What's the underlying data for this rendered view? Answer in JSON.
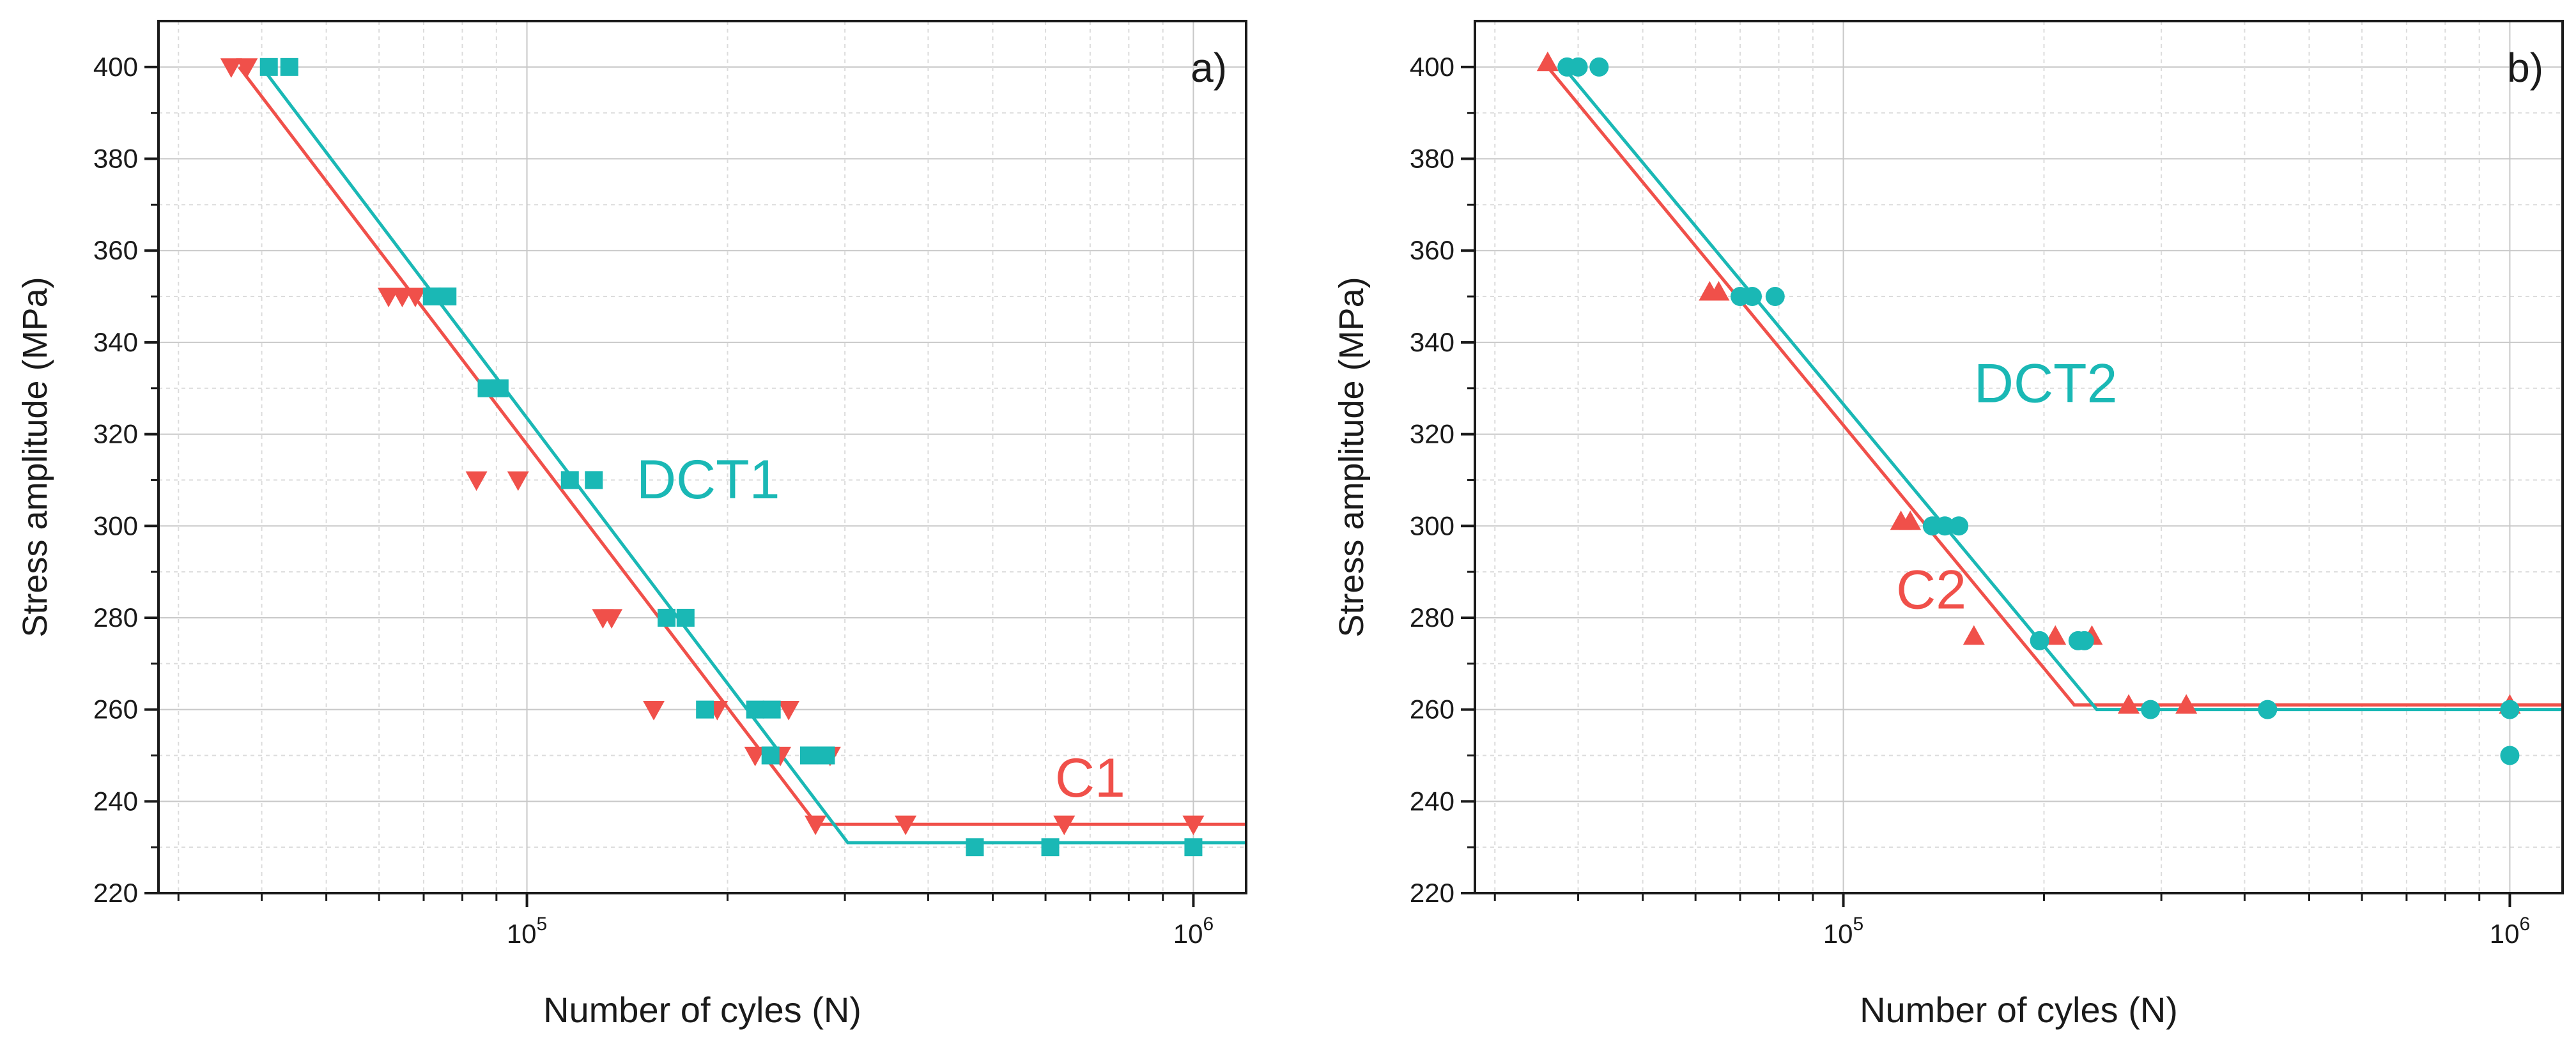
{
  "figure": {
    "background": "#ffffff"
  },
  "chart_data": [
    {
      "type": "scatter",
      "id": "a",
      "panel_label": "a)",
      "xlabel": "Number of cyles (N)",
      "ylabel": "Stress amplitude (MPa)",
      "x_scale": "log",
      "xlim": [
        28000,
        1200000
      ],
      "ylim": [
        220,
        410
      ],
      "y_ticks": [
        220,
        240,
        260,
        280,
        300,
        320,
        340,
        360,
        380,
        400
      ],
      "x_ticks": [
        {
          "value": 100000,
          "base": "10",
          "exp": "5"
        },
        {
          "value": 1000000,
          "base": "10",
          "exp": "6"
        }
      ],
      "grid": true,
      "series": [
        {
          "name": "C1",
          "color": "#f0504a",
          "marker": "triangle-down",
          "points": [
            [
              36000,
              400
            ],
            [
              38000,
              400
            ],
            [
              62000,
              350
            ],
            [
              65000,
              350
            ],
            [
              68000,
              350
            ],
            [
              84000,
              310
            ],
            [
              97000,
              310
            ],
            [
              130000,
              280
            ],
            [
              134000,
              280
            ],
            [
              155000,
              260
            ],
            [
              193000,
              260
            ],
            [
              220000,
              250
            ],
            [
              240000,
              250
            ],
            [
              247000,
              260
            ],
            [
              285000,
              250
            ],
            [
              271000,
              235
            ],
            [
              370000,
              235
            ],
            [
              640000,
              235
            ],
            [
              1000000,
              235
            ]
          ],
          "fit": [
            [
              37000,
              400
            ],
            [
              272000,
              235
            ],
            [
              1200000,
              235
            ]
          ],
          "label": {
            "text": "C1",
            "x": 620000,
            "y": 241
          }
        },
        {
          "name": "DCT1",
          "color": "#1ab8b5",
          "marker": "square",
          "points": [
            [
              41000,
              400
            ],
            [
              44000,
              400
            ],
            [
              72000,
              350
            ],
            [
              76000,
              350
            ],
            [
              87000,
              330
            ],
            [
              91000,
              330
            ],
            [
              116000,
              310
            ],
            [
              126000,
              310
            ],
            [
              162000,
              280
            ],
            [
              173000,
              280
            ],
            [
              185000,
              260
            ],
            [
              220000,
              260
            ],
            [
              233000,
              260
            ],
            [
              232000,
              250
            ],
            [
              265000,
              250
            ],
            [
              281000,
              250
            ],
            [
              470000,
              230
            ],
            [
              610000,
              230
            ],
            [
              1000000,
              230
            ]
          ],
          "fit": [
            [
              40000,
              400
            ],
            [
              303000,
              231
            ],
            [
              1200000,
              231
            ]
          ],
          "label": {
            "text": "DCT1",
            "x": 146000,
            "y": 306
          }
        }
      ]
    },
    {
      "type": "scatter",
      "id": "b",
      "panel_label": "b)",
      "xlabel": "Number of cyles (N)",
      "ylabel": "Stress amplitude (MPa)",
      "x_scale": "log",
      "xlim": [
        28000,
        1200000
      ],
      "ylim": [
        220,
        410
      ],
      "y_ticks": [
        220,
        240,
        260,
        280,
        300,
        320,
        340,
        360,
        380,
        400
      ],
      "x_ticks": [
        {
          "value": 100000,
          "base": "10",
          "exp": "5"
        },
        {
          "value": 1000000,
          "base": "10",
          "exp": "6"
        }
      ],
      "grid": true,
      "series": [
        {
          "name": "C2",
          "color": "#f0504a",
          "marker": "triangle-up",
          "points": [
            [
              36000,
              401
            ],
            [
              63000,
              351
            ],
            [
              65000,
              351
            ],
            [
              122000,
              301
            ],
            [
              126000,
              301
            ],
            [
              157000,
              276
            ],
            [
              208000,
              276
            ],
            [
              236000,
              276
            ],
            [
              268000,
              261
            ],
            [
              327000,
              261
            ],
            [
              1000000,
              261
            ]
          ],
          "fit": [
            [
              36000,
              400
            ],
            [
              222000,
              261
            ],
            [
              1200000,
              261
            ]
          ],
          "label": {
            "text": "C2",
            "x": 120000,
            "y": 282
          }
        },
        {
          "name": "DCT2",
          "color": "#1ab8b5",
          "marker": "circle",
          "points": [
            [
              38500,
              400
            ],
            [
              40000,
              400
            ],
            [
              43000,
              400
            ],
            [
              70000,
              350
            ],
            [
              73000,
              350
            ],
            [
              79000,
              350
            ],
            [
              136000,
              300
            ],
            [
              142000,
              300
            ],
            [
              149000,
              300
            ],
            [
              197000,
              275
            ],
            [
              225000,
              275
            ],
            [
              230000,
              275
            ],
            [
              289000,
              260
            ],
            [
              433000,
              260
            ],
            [
              1000000,
              260
            ],
            [
              1000000,
              250
            ]
          ],
          "fit": [
            [
              38000,
              400
            ],
            [
              240000,
              260
            ],
            [
              1200000,
              260
            ]
          ],
          "label": {
            "text": "DCT2",
            "x": 157000,
            "y": 327
          }
        }
      ]
    }
  ]
}
